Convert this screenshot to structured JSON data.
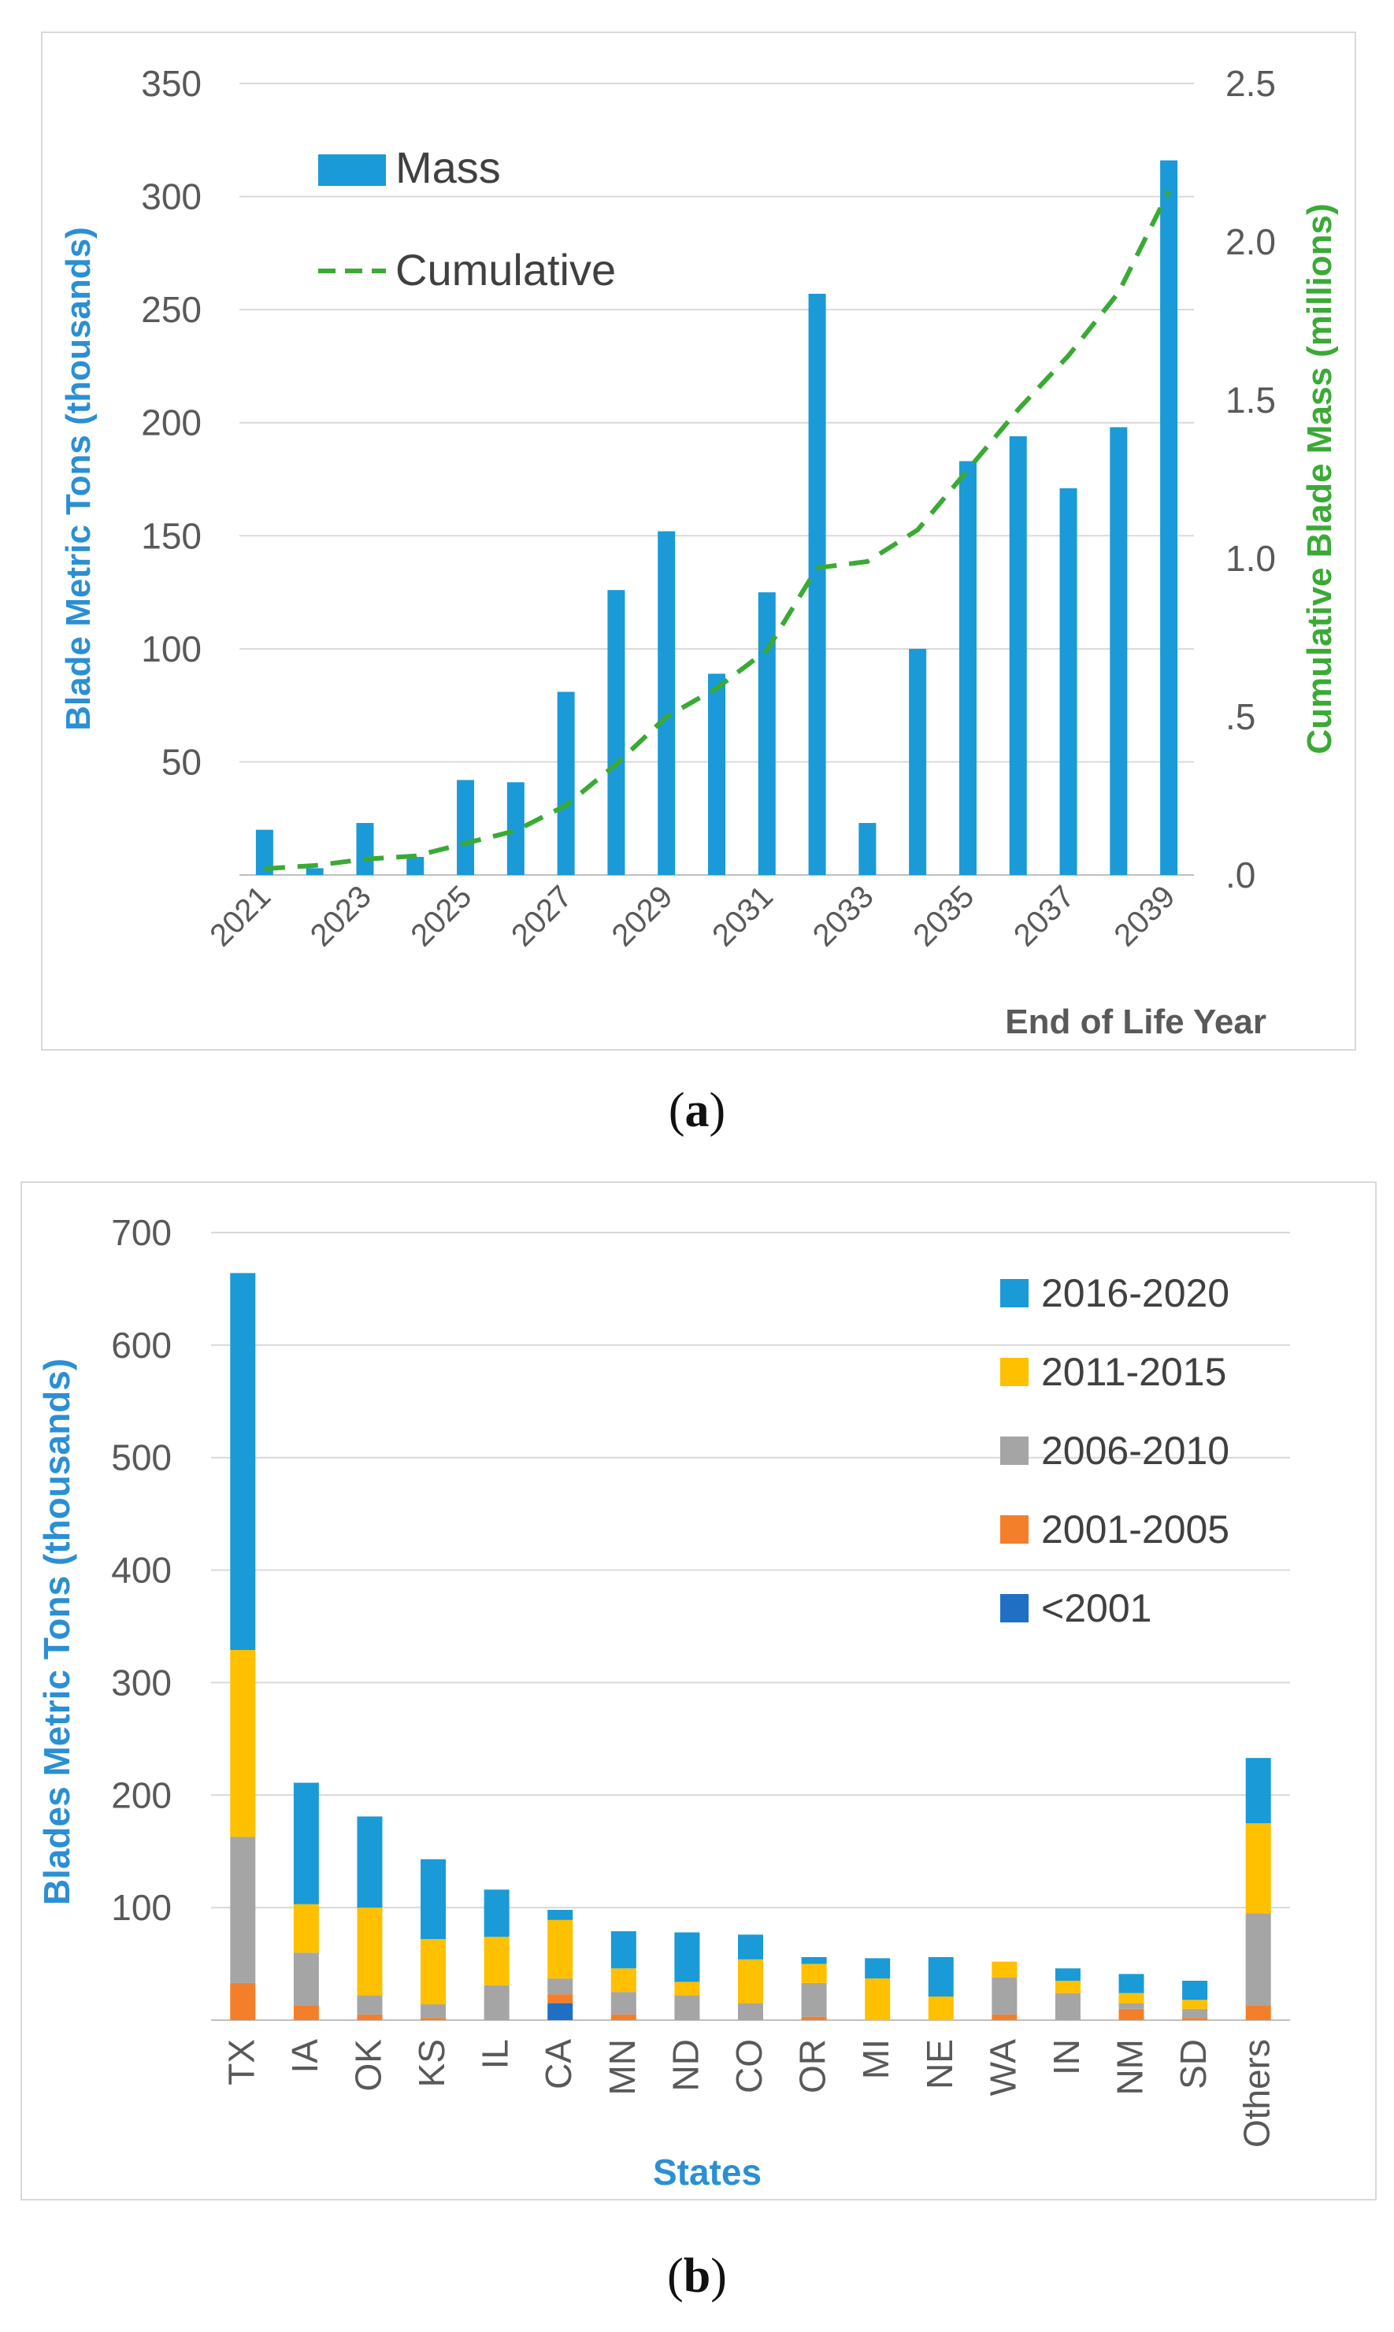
{
  "panels": [
    {
      "caption_letter": "a"
    },
    {
      "caption_letter": "b"
    }
  ],
  "chart_data": [
    {
      "type": "bar",
      "categories": [
        "2021",
        "2022",
        "2023",
        "2024",
        "2025",
        "2026",
        "2027",
        "2028",
        "2029",
        "2030",
        "2031",
        "2032",
        "2033",
        "2034",
        "2035",
        "2036",
        "2037",
        "2038",
        "2039"
      ],
      "tick_labels": [
        "2021",
        "2023",
        "2025",
        "2027",
        "2029",
        "2031",
        "2033",
        "2035",
        "2037",
        "2039"
      ],
      "series": [
        {
          "name": "Mass",
          "type": "bar",
          "axis": "left",
          "color": "#1a9ad6",
          "values": [
            20,
            3,
            23,
            8,
            42,
            41,
            81,
            126,
            152,
            89,
            125,
            257,
            23,
            100,
            183,
            194,
            171,
            198,
            316
          ]
        },
        {
          "name": "Cumulative",
          "type": "line",
          "style": "dashed",
          "axis": "right",
          "color": "#3aaa35",
          "values": [
            0.02,
            0.03,
            0.05,
            0.06,
            0.1,
            0.14,
            0.22,
            0.35,
            0.5,
            0.59,
            0.71,
            0.97,
            0.99,
            1.09,
            1.28,
            1.47,
            1.64,
            1.84,
            2.16
          ]
        }
      ],
      "ylabel": "Blade Metric Tons (thousands)",
      "y2label": "Cumulative Blade Mass (millions)",
      "xlabel": "End of Life Year",
      "ylim": [
        0,
        350
      ],
      "yticks": [
        "50",
        "100",
        "150",
        "200",
        "250",
        "300",
        "350"
      ],
      "y2lim": [
        0,
        2.5
      ],
      "y2ticks": [
        ".0",
        ".5",
        "1.0",
        "1.5",
        "2.0",
        "2.5"
      ],
      "legend": "top-left",
      "grid": true
    },
    {
      "type": "stacked-bar",
      "categories": [
        "TX",
        "IA",
        "OK",
        "KS",
        "IL",
        "CA",
        "MN",
        "ND",
        "CO",
        "OR",
        "MI",
        "NE",
        "WA",
        "IN",
        "NM",
        "SD",
        "Others"
      ],
      "series": [
        {
          "name": "<2001",
          "color": "#1f6fc5",
          "values": [
            0,
            0,
            0,
            0,
            0,
            15,
            0,
            0,
            0,
            0,
            0,
            0,
            0,
            0,
            0,
            0,
            0
          ]
        },
        {
          "name": "2001-2005",
          "color": "#f47f2a",
          "values": [
            33,
            13,
            5,
            2,
            0,
            8,
            5,
            0,
            0,
            3,
            0,
            0,
            5,
            0,
            10,
            2,
            13
          ]
        },
        {
          "name": "2006-2010",
          "color": "#a5a5a5",
          "values": [
            130,
            47,
            17,
            12,
            31,
            14,
            20,
            22,
            15,
            30,
            0,
            0,
            33,
            24,
            5,
            8,
            82
          ]
        },
        {
          "name": "2011-2015",
          "color": "#ffc000",
          "values": [
            166,
            43,
            78,
            58,
            43,
            52,
            21,
            12,
            39,
            17,
            37,
            21,
            14,
            11,
            9,
            8,
            80
          ]
        },
        {
          "name": "2016-2020",
          "color": "#1a9ad6",
          "values": [
            335,
            108,
            81,
            71,
            42,
            9,
            33,
            44,
            22,
            6,
            18,
            35,
            0,
            11,
            17,
            17,
            58
          ]
        }
      ],
      "legend_order": [
        "2016-2020",
        "2011-2015",
        "2006-2010",
        "2001-2005",
        "<2001"
      ],
      "ylabel": "Blades Metric Tons (thousands)",
      "xlabel": "States",
      "ylim": [
        0,
        700
      ],
      "yticks": [
        "100",
        "200",
        "300",
        "400",
        "500",
        "600",
        "700"
      ],
      "legend": "top-right",
      "grid": true
    }
  ]
}
